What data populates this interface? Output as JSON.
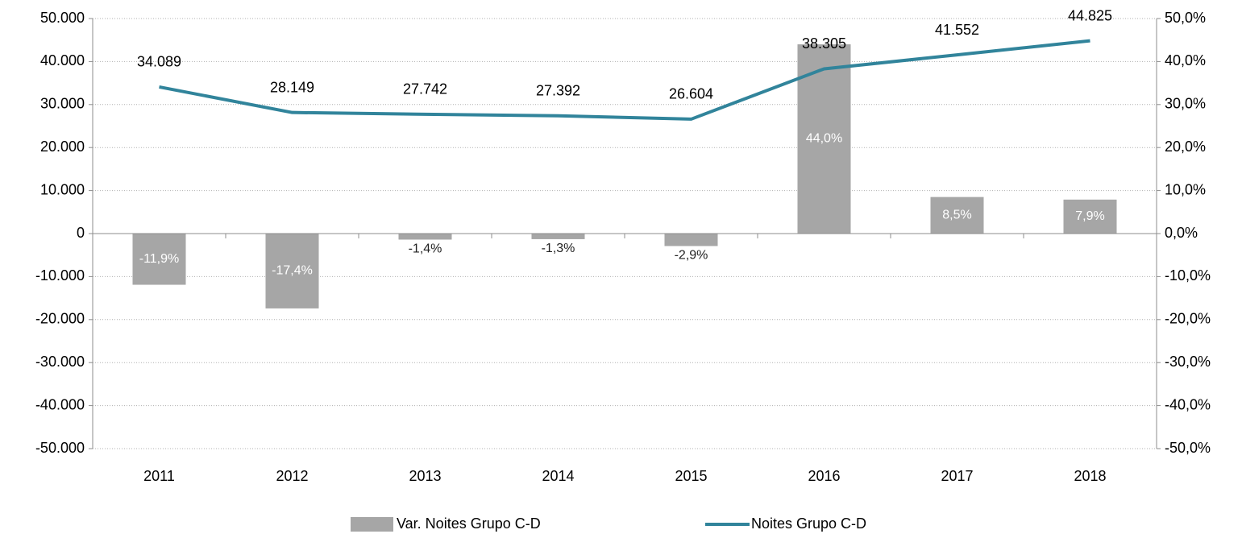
{
  "chart_data": {
    "type": "combo",
    "categories": [
      "2011",
      "2012",
      "2013",
      "2014",
      "2015",
      "2016",
      "2017",
      "2018"
    ],
    "series": [
      {
        "name": "Var. Noites Grupo C-D",
        "type": "bar",
        "axis": "y2",
        "color": "#a6a6a6",
        "values": [
          -11.9,
          -17.4,
          -1.4,
          -1.3,
          -2.9,
          44.0,
          8.5,
          7.9
        ],
        "value_labels": [
          "-11,9%",
          "-17,4%",
          "-1,4%",
          "-1,3%",
          "-2,9%",
          "44,0%",
          "8,5%",
          "7,9%"
        ]
      },
      {
        "name": "Noites Grupo C-D",
        "type": "line",
        "axis": "y",
        "color": "#31849b",
        "values": [
          34089,
          28149,
          27742,
          27392,
          26604,
          38305,
          41552,
          44825
        ],
        "value_labels": [
          "34.089",
          "28.149",
          "27.742",
          "27.392",
          "26.604",
          "38.305",
          "41.552",
          "44.825"
        ]
      }
    ],
    "ylim": [
      -50000,
      50000
    ],
    "yticks": [
      {
        "value": -50000,
        "label": "-50.000"
      },
      {
        "value": -40000,
        "label": "-40.000"
      },
      {
        "value": -30000,
        "label": "-30.000"
      },
      {
        "value": -20000,
        "label": "-20.000"
      },
      {
        "value": -10000,
        "label": "-10.000"
      },
      0,
      {
        "value": 10000,
        "label": "10.000"
      },
      {
        "value": 20000,
        "label": "20.000"
      },
      {
        "value": 30000,
        "label": "30.000"
      },
      {
        "value": 40000,
        "label": "40.000"
      },
      {
        "value": 50000,
        "label": "50.000"
      }
    ],
    "y2lim": [
      -50,
      50
    ],
    "y2ticks": [
      {
        "value": -50,
        "label": "-50,0%"
      },
      {
        "value": -40,
        "label": "-40,0%"
      },
      {
        "value": -30,
        "label": "-30,0%"
      },
      {
        "value": -20,
        "label": "-20,0%"
      },
      {
        "value": -10,
        "label": "-10,0%"
      },
      {
        "value": 0,
        "label": "0,0%"
      },
      {
        "value": 10,
        "label": "10,0%"
      },
      {
        "value": 20,
        "label": "20,0%"
      },
      {
        "value": 30,
        "label": "30,0%"
      },
      {
        "value": 40,
        "label": "40,0%"
      },
      {
        "value": 50,
        "label": "50,0%"
      }
    ],
    "grid": true,
    "legend": "bottom"
  }
}
